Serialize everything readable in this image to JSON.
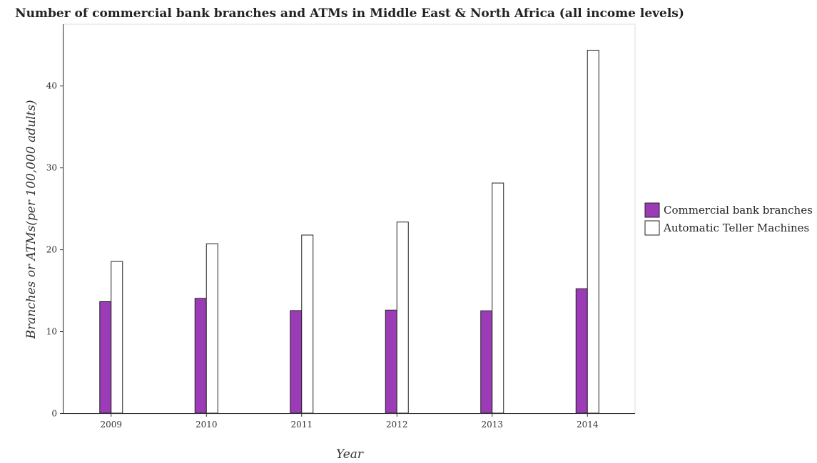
{
  "chart_data": {
    "type": "bar",
    "title": "Number of commercial bank branches and ATMs in Middle East & North Africa (all income levels)",
    "xlabel": "Year",
    "ylabel": "Branches or ATMs(per 100,000 adults)",
    "categories": [
      "2009",
      "2010",
      "2011",
      "2012",
      "2013",
      "2014"
    ],
    "series": [
      {
        "name": "Commercial bank branches",
        "color": "#9b3bb6",
        "values": [
          13.62,
          14.02,
          12.53,
          12.59,
          12.5,
          15.19
        ]
      },
      {
        "name": "Automatic Teller Machines",
        "color": "#ffffff",
        "values": [
          18.52,
          20.69,
          21.75,
          23.34,
          28.1,
          44.33
        ]
      }
    ],
    "ylim": [
      0,
      47.5
    ],
    "yticks": [
      0,
      10,
      20,
      30,
      40
    ],
    "grid": false,
    "legend_position": "right"
  }
}
